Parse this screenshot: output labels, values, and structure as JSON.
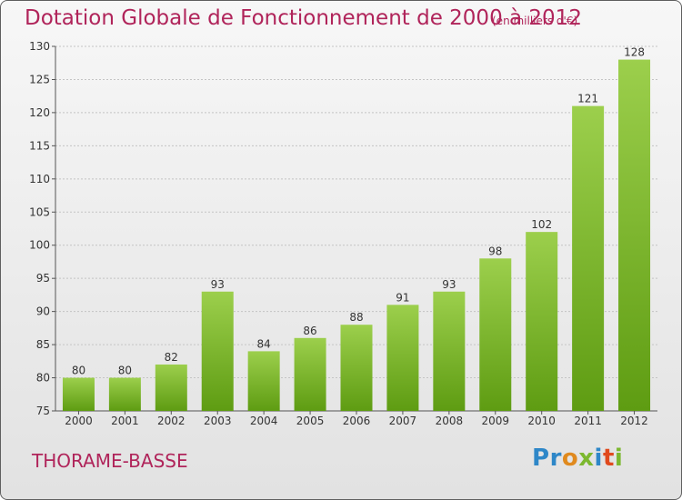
{
  "title": "Dotation Globale de Fonctionnement de 2000 à 2012",
  "subtitle": "(en milliers d'€)",
  "commune": "THORAME-BASSE",
  "logo_text": "Proxiti",
  "colors": {
    "bar_top": "#9ccf4c",
    "bar_bottom": "#5e9c12",
    "title": "#b0245a",
    "grid": "#bdbdbd"
  },
  "chart_data": {
    "type": "bar",
    "title": "Dotation Globale de Fonctionnement de 2000 à 2012",
    "subtitle": "(en milliers d'€)",
    "xlabel": "",
    "ylabel": "",
    "categories": [
      "2000",
      "2001",
      "2002",
      "2003",
      "2004",
      "2005",
      "2006",
      "2007",
      "2008",
      "2009",
      "2010",
      "2011",
      "2012"
    ],
    "values": [
      80,
      80,
      82,
      93,
      84,
      86,
      88,
      91,
      93,
      98,
      102,
      121,
      128
    ],
    "ylim": [
      75,
      130
    ],
    "yticks": [
      75,
      80,
      85,
      90,
      95,
      100,
      105,
      110,
      115,
      120,
      125,
      130
    ],
    "grid": true,
    "data_labels": true
  }
}
